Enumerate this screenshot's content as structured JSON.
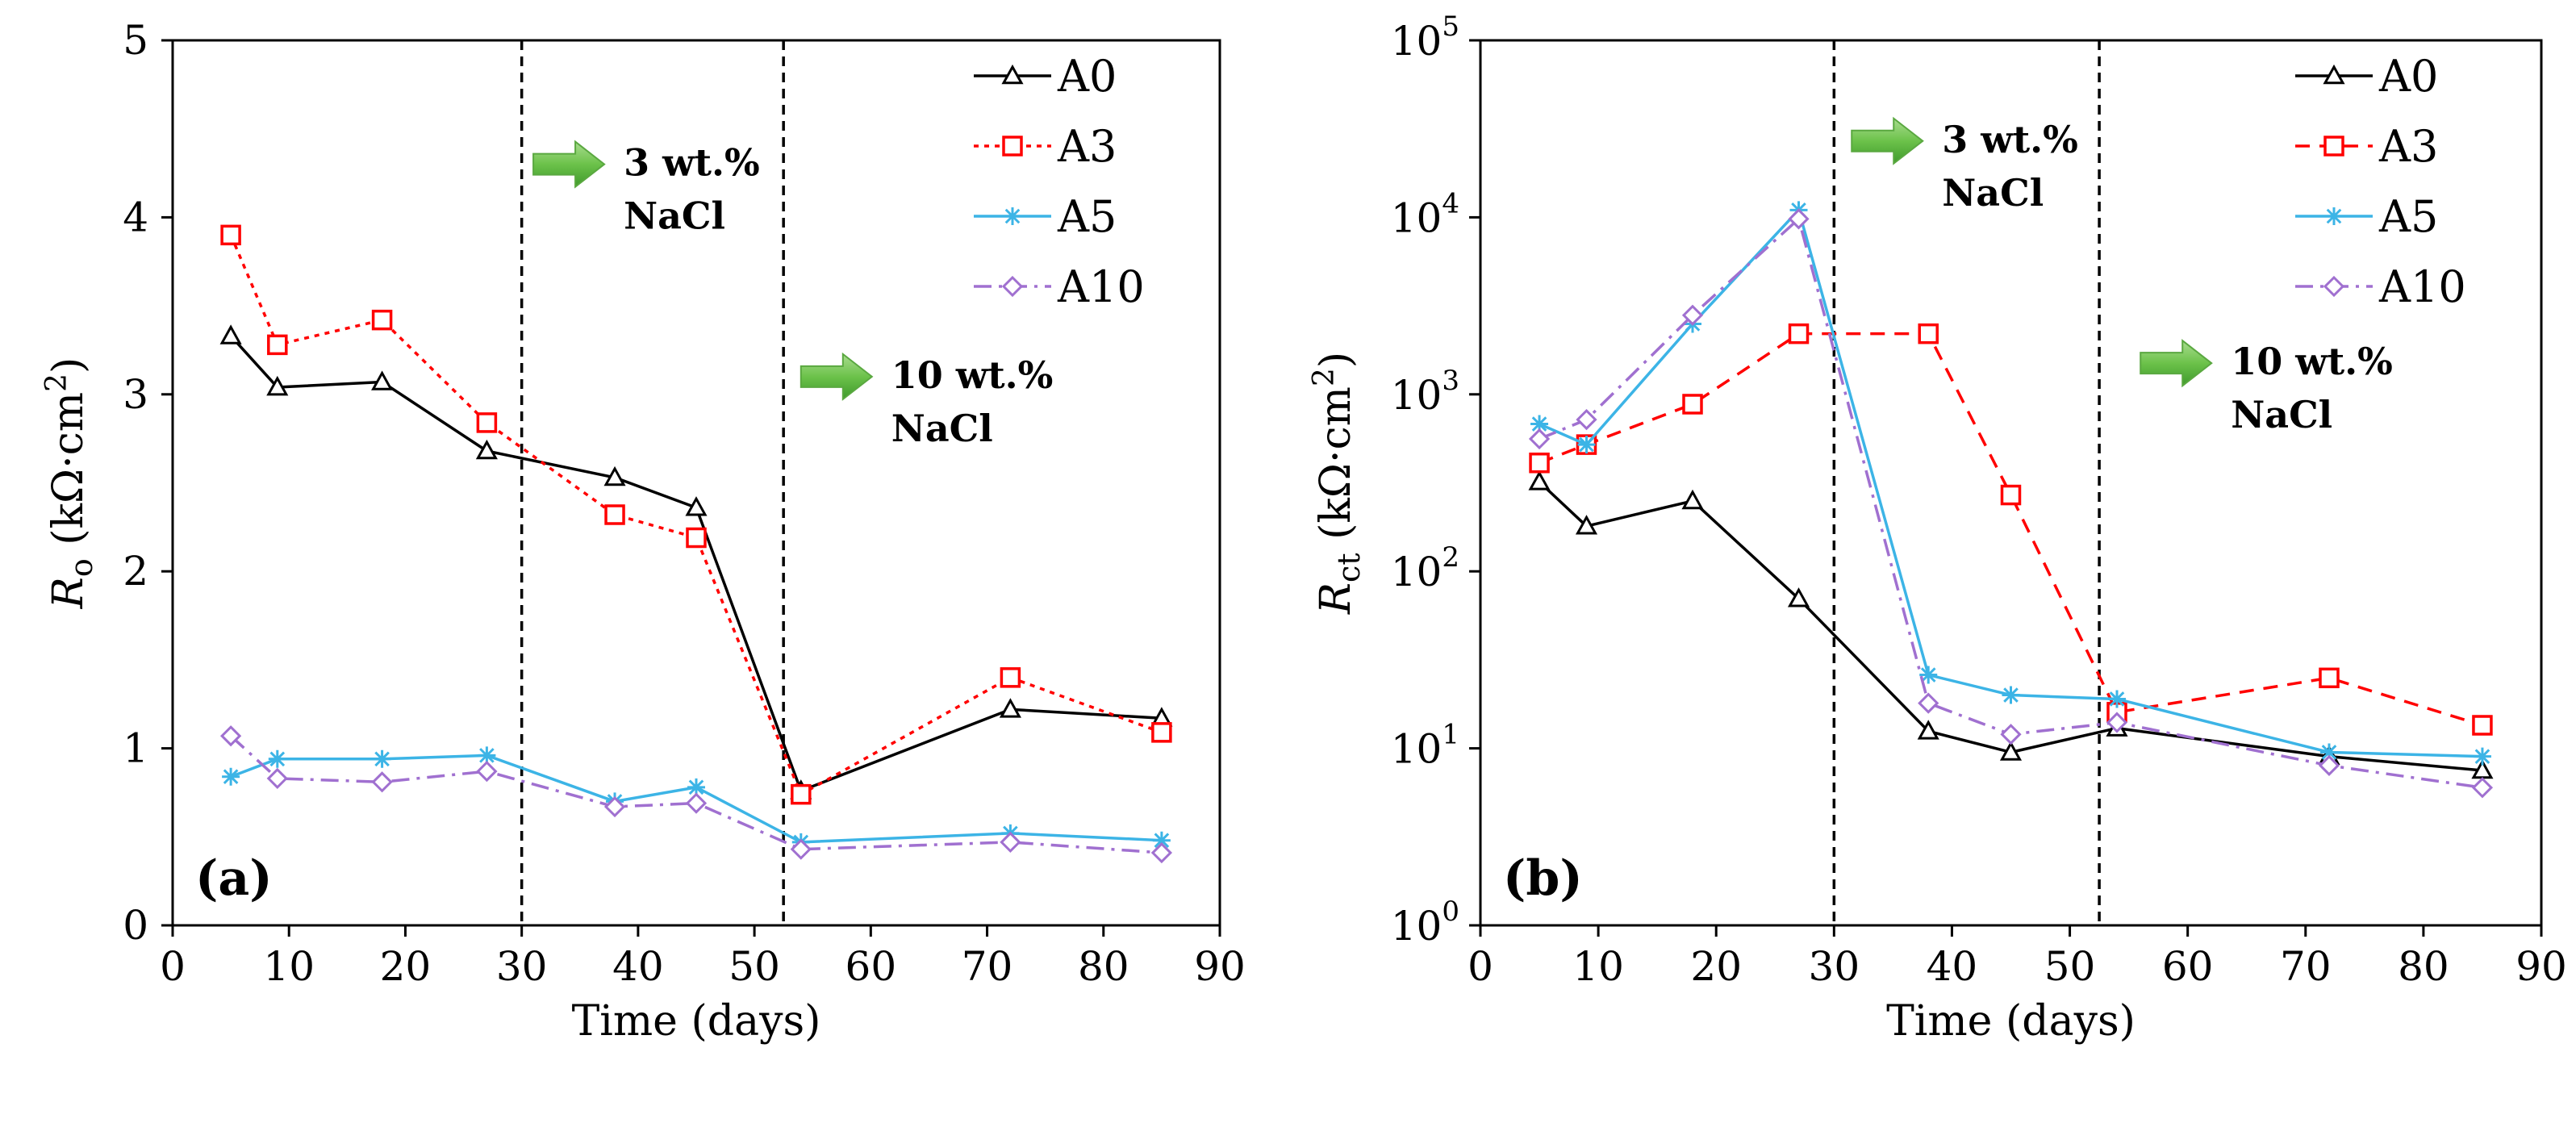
{
  "chart_data": [
    {
      "type": "line",
      "panel_label": "(a)",
      "ylabel_main": "R",
      "ylabel_sub": "o",
      "ylabel_unit": " (kΩ·cm",
      "ylabel_sup": "2",
      "ylabel_close": ")",
      "xlabel": "Time (days)",
      "xlim": [
        0,
        90
      ],
      "ylim": [
        0,
        5
      ],
      "yscale": "linear",
      "x_ticks": [
        "0",
        "10",
        "20",
        "30",
        "40",
        "50",
        "60",
        "70",
        "80",
        "90"
      ],
      "y_ticks": [
        "0",
        "1",
        "2",
        "3",
        "4",
        "5"
      ],
      "x_tick_values": [
        0,
        10,
        20,
        30,
        40,
        50,
        60,
        70,
        80,
        90
      ],
      "y_tick_values": [
        0,
        1,
        2,
        3,
        4,
        5
      ],
      "vlines": [
        30,
        52.5
      ],
      "annotations": [
        {
          "x": 31,
          "y": 4.3,
          "line1": "3 wt.%",
          "line2": "NaCl"
        },
        {
          "x": 54,
          "y": 3.1,
          "line1": "10 wt.%",
          "line2": "NaCl"
        }
      ],
      "legend_position": "top-right",
      "series": [
        {
          "name": "A0",
          "color": "#000000",
          "marker": "triangle",
          "dash": "solid",
          "x": [
            5,
            9,
            18,
            27,
            38,
            45,
            54,
            72,
            85
          ],
          "y": [
            3.33,
            3.04,
            3.07,
            2.68,
            2.53,
            2.36,
            0.76,
            1.22,
            1.17
          ]
        },
        {
          "name": "A3",
          "color": "#ff0000",
          "marker": "square",
          "dash": "dotted",
          "x": [
            5,
            9,
            18,
            27,
            38,
            45,
            54,
            72,
            85
          ],
          "y": [
            3.9,
            3.28,
            3.42,
            2.84,
            2.32,
            2.19,
            0.74,
            1.4,
            1.09
          ]
        },
        {
          "name": "A5",
          "color": "#3cb4e6",
          "marker": "star",
          "dash": "solid",
          "x": [
            5,
            9,
            18,
            27,
            38,
            45,
            54,
            72,
            85
          ],
          "y": [
            0.84,
            0.94,
            0.94,
            0.96,
            0.7,
            0.78,
            0.47,
            0.52,
            0.48
          ]
        },
        {
          "name": "A10",
          "color": "#a070d0",
          "marker": "diamond",
          "dash": "dashdot",
          "x": [
            5,
            9,
            18,
            27,
            38,
            45,
            54,
            72,
            85
          ],
          "y": [
            1.07,
            0.83,
            0.81,
            0.87,
            0.67,
            0.69,
            0.43,
            0.47,
            0.41
          ]
        }
      ]
    },
    {
      "type": "line",
      "panel_label": "(b)",
      "ylabel_main": "R",
      "ylabel_sub": "ct",
      "ylabel_unit": " (kΩ·cm",
      "ylabel_sup": "2",
      "ylabel_close": ")",
      "xlabel": "Time (days)",
      "xlim": [
        0,
        90
      ],
      "ylim": [
        1,
        100000
      ],
      "yscale": "log",
      "x_ticks": [
        "0",
        "10",
        "20",
        "30",
        "40",
        "50",
        "60",
        "70",
        "80",
        "90"
      ],
      "y_ticks": [
        "10",
        "10",
        "10",
        "10",
        "10",
        "10"
      ],
      "y_tick_exponents": [
        "0",
        "1",
        "2",
        "3",
        "4",
        "5"
      ],
      "x_tick_values": [
        0,
        10,
        20,
        30,
        40,
        50,
        60,
        70,
        80,
        90
      ],
      "y_tick_values": [
        1,
        10,
        100,
        1000,
        10000,
        100000
      ],
      "vlines": [
        30,
        52.5
      ],
      "annotations": [
        {
          "x": 31.5,
          "y": 27000,
          "line1": "3 wt.%",
          "line2": "NaCl"
        },
        {
          "x": 56,
          "y": 1500,
          "line1": "10 wt.%",
          "line2": "NaCl"
        }
      ],
      "legend_position": "top-right",
      "series": [
        {
          "name": "A0",
          "color": "#000000",
          "marker": "triangle",
          "dash": "solid",
          "x": [
            5,
            9,
            18,
            27,
            38,
            45,
            54,
            72,
            85
          ],
          "y": [
            320,
            180,
            250,
            70,
            12.5,
            9.5,
            13,
            9,
            7.5
          ]
        },
        {
          "name": "A3",
          "color": "#ff0000",
          "marker": "square",
          "dash": "dashed",
          "x": [
            5,
            9,
            18,
            27,
            38,
            45,
            54,
            72,
            85
          ],
          "y": [
            410,
            520,
            880,
            2200,
            2200,
            270,
            16,
            25,
            13.5
          ]
        },
        {
          "name": "A5",
          "color": "#3cb4e6",
          "marker": "star",
          "dash": "solid",
          "x": [
            5,
            9,
            18,
            27,
            38,
            45,
            54,
            72,
            85
          ],
          "y": [
            680,
            520,
            2500,
            11000,
            26,
            20,
            19,
            9.5,
            9
          ]
        },
        {
          "name": "A10",
          "color": "#a070d0",
          "marker": "diamond",
          "dash": "dashdot",
          "x": [
            5,
            9,
            18,
            27,
            38,
            45,
            54,
            72,
            85
          ],
          "y": [
            560,
            720,
            2800,
            9800,
            18,
            12,
            14,
            8,
            6
          ]
        }
      ]
    }
  ]
}
